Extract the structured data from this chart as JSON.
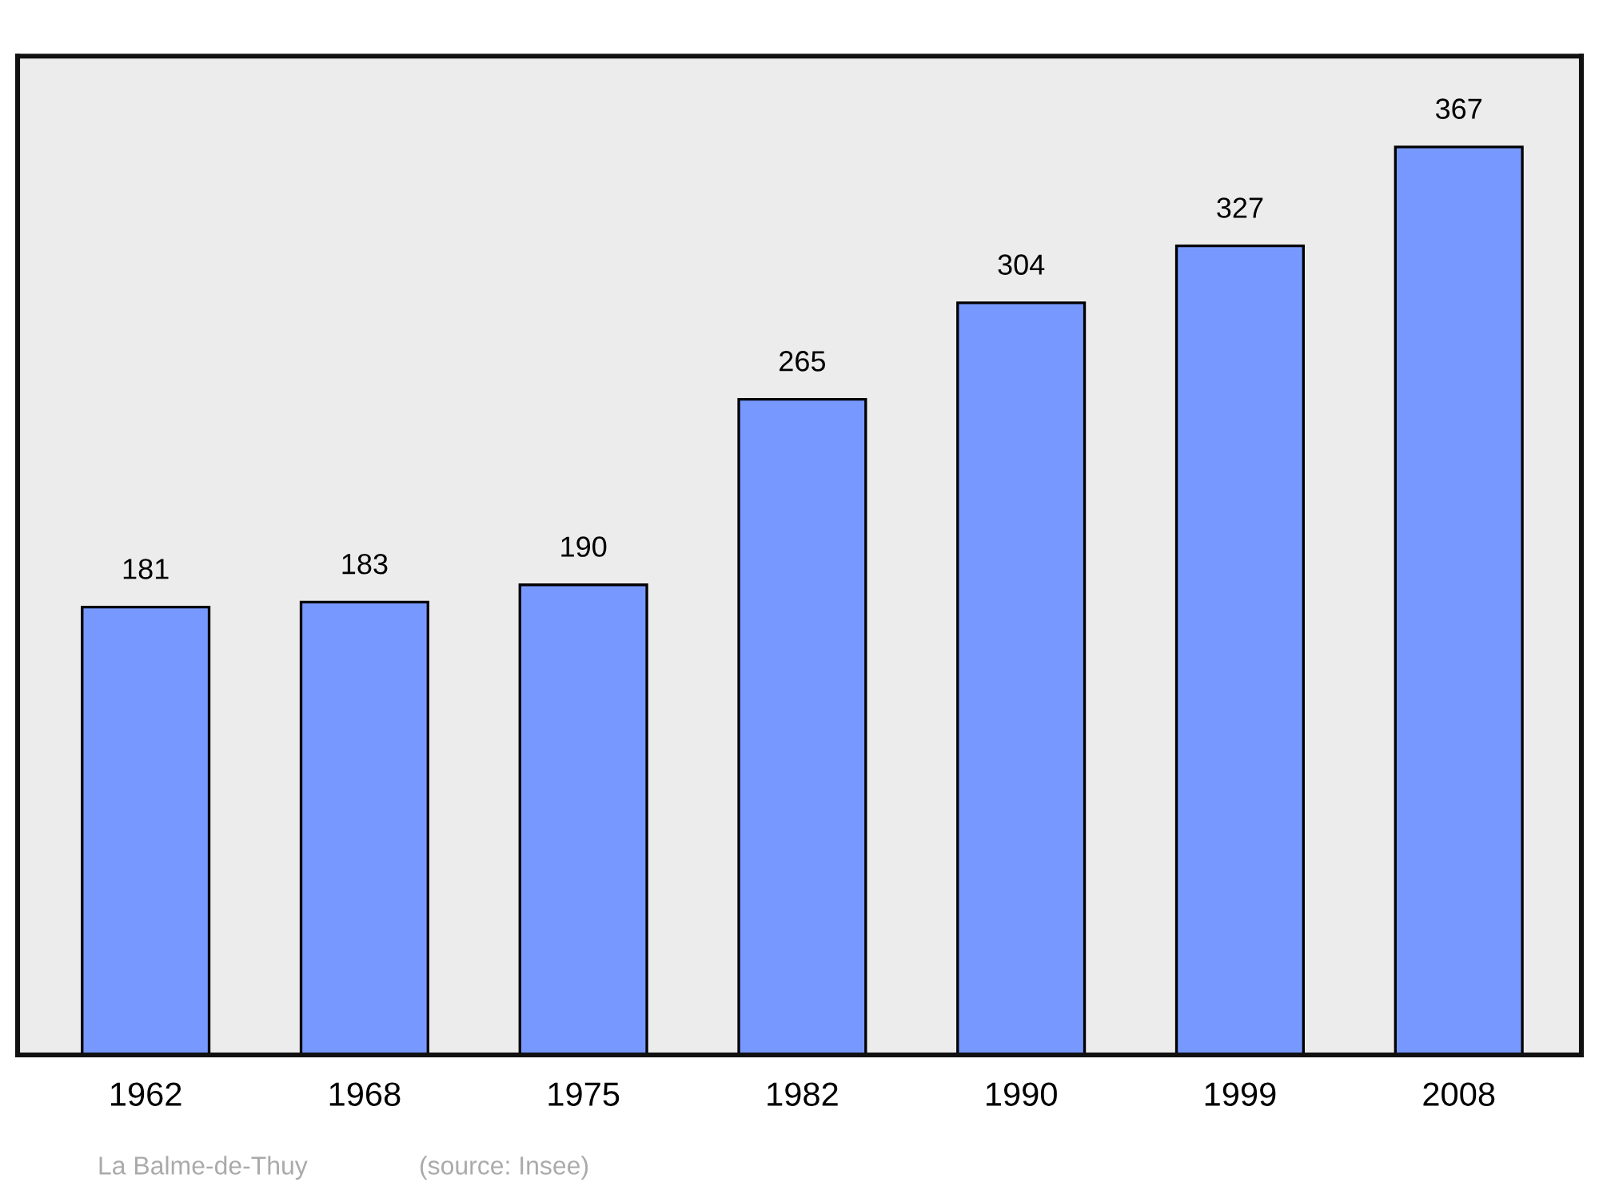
{
  "chart_data": {
    "type": "bar",
    "categories": [
      "1962",
      "1968",
      "1975",
      "1982",
      "1990",
      "1999",
      "2008"
    ],
    "values": [
      181,
      183,
      190,
      265,
      304,
      327,
      367
    ],
    "color": "#7799ff",
    "data_labels": true,
    "grid": false,
    "legend": false,
    "annotations": [
      "La Balme-de-Thuy",
      "(source: Insee)"
    ]
  }
}
